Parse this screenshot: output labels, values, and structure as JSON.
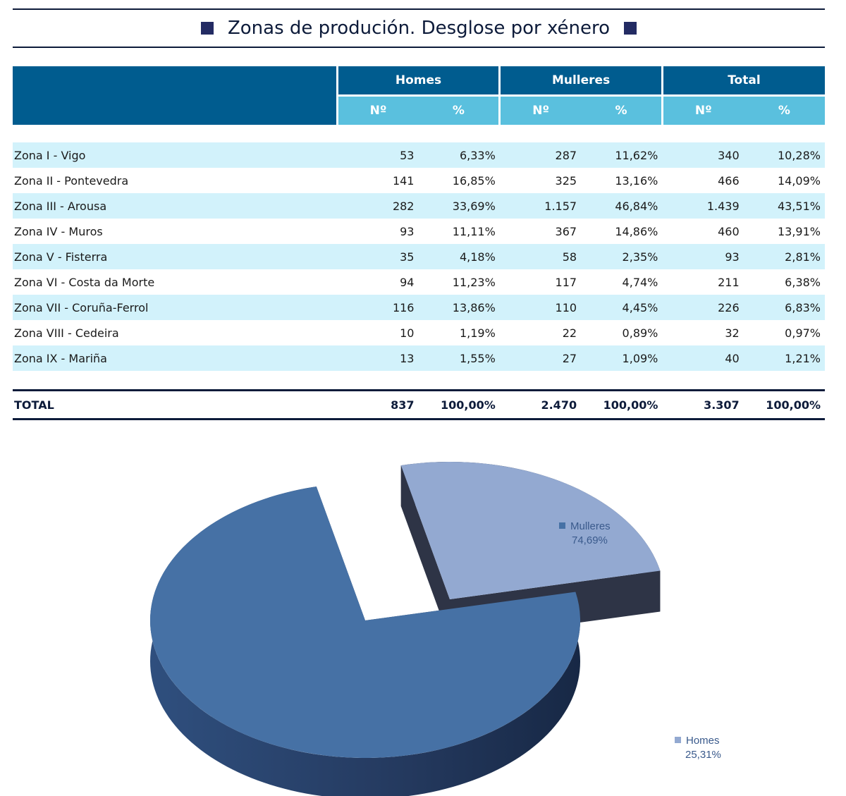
{
  "title": "Zonas de produción. Desglose por xénero",
  "table": {
    "groups": [
      "Homes",
      "Mulleres",
      "Total"
    ],
    "subheaders": [
      "Nº",
      "%",
      "Nº",
      "%",
      "Nº",
      "%"
    ],
    "rows": [
      {
        "zone": "Zona I - Vigo",
        "vals": [
          "53",
          "6,33%",
          "287",
          "11,62%",
          "340",
          "10,28%"
        ]
      },
      {
        "zone": "Zona II - Pontevedra",
        "vals": [
          "141",
          "16,85%",
          "325",
          "13,16%",
          "466",
          "14,09%"
        ]
      },
      {
        "zone": "Zona III - Arousa",
        "vals": [
          "282",
          "33,69%",
          "1.157",
          "46,84%",
          "1.439",
          "43,51%"
        ]
      },
      {
        "zone": "Zona IV - Muros",
        "vals": [
          "93",
          "11,11%",
          "367",
          "14,86%",
          "460",
          "13,91%"
        ]
      },
      {
        "zone": "Zona V - Fisterra",
        "vals": [
          "35",
          "4,18%",
          "58",
          "2,35%",
          "93",
          "2,81%"
        ]
      },
      {
        "zone": "Zona VI - Costa da Morte",
        "vals": [
          "94",
          "11,23%",
          "117",
          "4,74%",
          "211",
          "6,38%"
        ]
      },
      {
        "zone": "Zona VII - Coruña-Ferrol",
        "vals": [
          "116",
          "13,86%",
          "110",
          "4,45%",
          "226",
          "6,83%"
        ]
      },
      {
        "zone": "Zona VIII - Cedeira",
        "vals": [
          "10",
          "1,19%",
          "22",
          "0,89%",
          "32",
          "0,97%"
        ]
      },
      {
        "zone": "Zona IX - Mariña",
        "vals": [
          "13",
          "1,55%",
          "27",
          "1,09%",
          "40",
          "1,21%"
        ]
      }
    ],
    "total": {
      "label": "TOTAL",
      "vals": [
        "837",
        "100,00%",
        "2.470",
        "100,00%",
        "3.307",
        "100,00%"
      ]
    }
  },
  "chart_data": {
    "type": "pie",
    "title": "",
    "categories": [
      "Mulleres",
      "Homes"
    ],
    "values": [
      74.69,
      25.31
    ],
    "value_labels": [
      "74,69%",
      "25,31%"
    ],
    "colors": [
      "#4671a5",
      "#93a9d1"
    ],
    "legend": "inline"
  }
}
